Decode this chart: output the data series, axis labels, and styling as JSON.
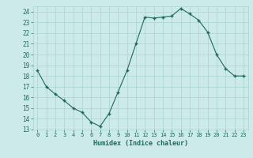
{
  "x": [
    0,
    1,
    2,
    3,
    4,
    5,
    6,
    7,
    8,
    9,
    10,
    11,
    12,
    13,
    14,
    15,
    16,
    17,
    18,
    19,
    20,
    21,
    22,
    23
  ],
  "y": [
    18.5,
    17.0,
    16.3,
    15.7,
    15.0,
    14.6,
    13.7,
    13.3,
    14.5,
    16.5,
    18.5,
    21.0,
    23.5,
    23.4,
    23.5,
    23.6,
    24.3,
    23.8,
    23.2,
    22.1,
    20.0,
    18.7,
    18.0,
    18.0
  ],
  "xlabel": "Humidex (Indice chaleur)",
  "xlim": [
    -0.5,
    23.5
  ],
  "ylim": [
    13,
    24.5
  ],
  "yticks": [
    13,
    14,
    15,
    16,
    17,
    18,
    19,
    20,
    21,
    22,
    23,
    24
  ],
  "xticks": [
    0,
    1,
    2,
    3,
    4,
    5,
    6,
    7,
    8,
    9,
    10,
    11,
    12,
    13,
    14,
    15,
    16,
    17,
    18,
    19,
    20,
    21,
    22,
    23
  ],
  "line_color": "#1a6b5a",
  "marker_color": "#1a6b5a",
  "bg_color": "#cceae8",
  "grid_color": "#aad4d0",
  "label_color": "#1a6b5a",
  "tick_color": "#1a6b5a"
}
